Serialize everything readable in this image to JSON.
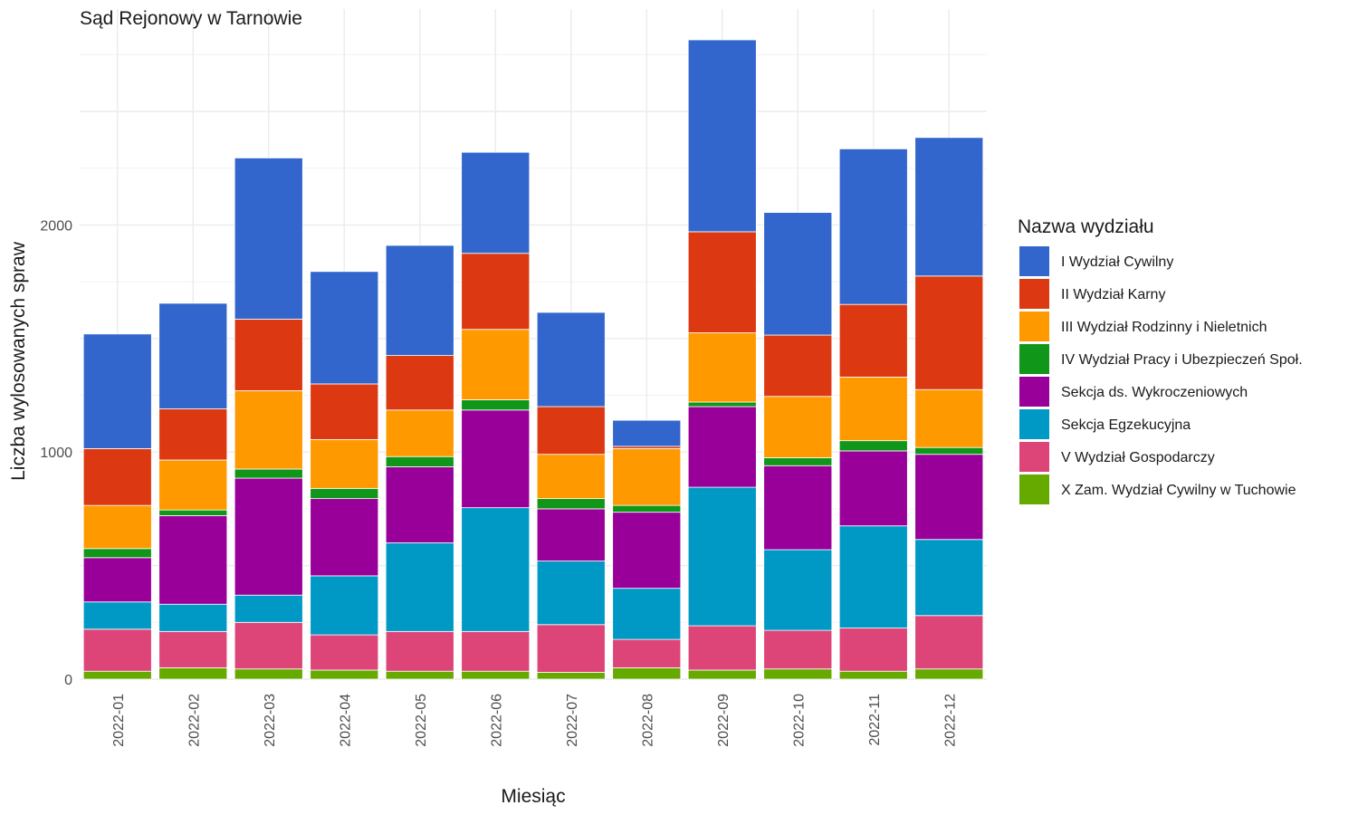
{
  "chart_data": {
    "type": "bar",
    "stacked": true,
    "title": "Sąd Rejonowy w Tarnowie",
    "xlabel": "Miesiąc",
    "ylabel": "Liczba wylosowanych spraw",
    "ylim": [
      0,
      2950
    ],
    "yticks": [
      0,
      1000,
      2000
    ],
    "grid": true,
    "legend_position": "right",
    "legend_title": "Nazwa wydziału",
    "categories": [
      "2022-01",
      "2022-02",
      "2022-03",
      "2022-04",
      "2022-05",
      "2022-06",
      "2022-07",
      "2022-08",
      "2022-09",
      "2022-10",
      "2022-11",
      "2022-12"
    ],
    "series": [
      {
        "name": "I Wydział Cywilny",
        "color": "#3366cc",
        "values": [
          505,
          465,
          710,
          495,
          485,
          445,
          415,
          115,
          845,
          540,
          685,
          610
        ]
      },
      {
        "name": "II Wydział Karny",
        "color": "#dc3912",
        "values": [
          250,
          225,
          315,
          245,
          240,
          335,
          210,
          10,
          445,
          270,
          320,
          500
        ]
      },
      {
        "name": "III Wydział Rodzinny i Nieletnich",
        "color": "#ff9900",
        "values": [
          190,
          220,
          345,
          215,
          205,
          310,
          195,
          250,
          305,
          270,
          280,
          255
        ]
      },
      {
        "name": "IV Wydział Pracy i Ubezpieczeń Społ.",
        "color": "#109618",
        "values": [
          40,
          25,
          40,
          45,
          45,
          45,
          45,
          30,
          20,
          35,
          45,
          30
        ]
      },
      {
        "name": "Sekcja ds. Wykroczeniowych",
        "color": "#990099",
        "values": [
          195,
          390,
          515,
          340,
          335,
          430,
          230,
          335,
          355,
          370,
          330,
          375
        ]
      },
      {
        "name": "Sekcja Egzekucyjna",
        "color": "#0099c6",
        "values": [
          120,
          120,
          120,
          260,
          390,
          545,
          280,
          225,
          610,
          355,
          450,
          335
        ]
      },
      {
        "name": "V Wydział Gospodarczy",
        "color": "#dd4477",
        "values": [
          185,
          160,
          205,
          155,
          175,
          175,
          210,
          125,
          195,
          170,
          190,
          235
        ]
      },
      {
        "name": "X Zam. Wydział Cywilny w Tuchowie",
        "color": "#66aa00",
        "values": [
          35,
          50,
          45,
          40,
          35,
          35,
          30,
          50,
          40,
          45,
          35,
          45
        ]
      }
    ]
  }
}
